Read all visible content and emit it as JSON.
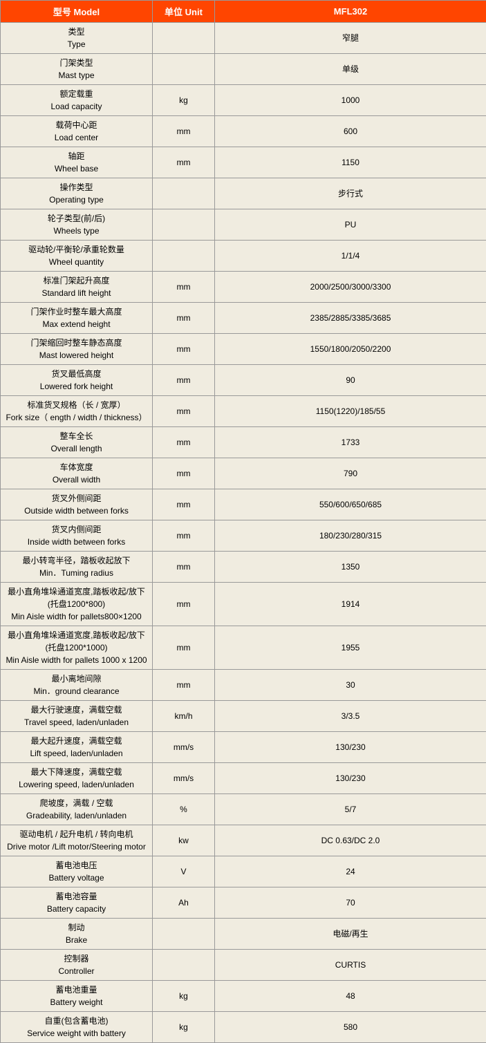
{
  "header": {
    "model_label": "型号 Model",
    "unit_label": "单位 Unit",
    "product": "MFL302"
  },
  "rows": [
    {
      "label": "类型\nType",
      "unit": "",
      "value": "窄腿"
    },
    {
      "label": "门架类型\nMast type",
      "unit": "",
      "value": "单级"
    },
    {
      "label": "额定载重\nLoad capacity",
      "unit": "kg",
      "value": "1000"
    },
    {
      "label": "载荷中心距\nLoad center",
      "unit": "mm",
      "value": "600"
    },
    {
      "label": "轴距\nWheel base",
      "unit": "mm",
      "value": "1150"
    },
    {
      "label": "操作类型\nOperating type",
      "unit": "",
      "value": "步行式"
    },
    {
      "label": "轮子类型(前/后)\nWheels type",
      "unit": "",
      "value": "PU"
    },
    {
      "label": "驱动轮/平衡轮/承重轮数量\nWheel quantity",
      "unit": "",
      "value": "1/1/4"
    },
    {
      "label": "标准门架起升高度\nStandard lift height",
      "unit": "mm",
      "value": "2000/2500/3000/3300"
    },
    {
      "label": "门架作业时整车最大高度\nMax extend height",
      "unit": "mm",
      "value": "2385/2885/3385/3685"
    },
    {
      "label": "门架缩回时整车静态高度\nMast lowered height",
      "unit": "mm",
      "value": "1550/1800/2050/2200"
    },
    {
      "label": "货叉最低高度\nLowered fork height",
      "unit": "mm",
      "value": "90"
    },
    {
      "label": "标准货叉规格（长 / 宽厚）\nFork size（ ength / width / thickness）",
      "unit": "mm",
      "value": "1150(1220)/185/55"
    },
    {
      "label": "整车全长\nOverall length",
      "unit": "mm",
      "value": "1733"
    },
    {
      "label": "车体宽度\nOverall width",
      "unit": "mm",
      "value": "790"
    },
    {
      "label": "货叉外侧间距\nOutside width between forks",
      "unit": "mm",
      "value": "550/600/650/685"
    },
    {
      "label": "货叉内侧间距\nInside width between forks",
      "unit": "mm",
      "value": "180/230/280/315"
    },
    {
      "label": "最小转弯半径，踏板收起放下\nMin．Tuming radius",
      "unit": "mm",
      "value": "1350"
    },
    {
      "label": "最小直角堆垛通道宽度,踏板收起/放下\n(托盘1200*800)\nMin Aisle width for pallets800×1200",
      "unit": "mm",
      "value": "1914"
    },
    {
      "label": "最小直角堆垛通道宽度,踏板收起/放下\n(托盘1200*1000)\nMin Aisle width for pallets 1000 x 1200",
      "unit": "mm",
      "value": "1955"
    },
    {
      "label": "最小离地间隙\nMin．ground clearance",
      "unit": "mm",
      "value": "30"
    },
    {
      "label": "最大行驶速度，满载空载\nTravel speed, laden/unladen",
      "unit": "km/h",
      "value": "3/3.5"
    },
    {
      "label": "最大起升速度，满载空载\nLift speed, laden/unladen",
      "unit": "mm/s",
      "value": "130/230"
    },
    {
      "label": "最大下降速度，满载空载\nLowering speed, laden/unladen",
      "unit": "mm/s",
      "value": "130/230"
    },
    {
      "label": "爬坡度，满载 / 空载\nGradeability, laden/unladen",
      "unit": "%",
      "value": "5/7"
    },
    {
      "label": "驱动电机 / 起升电机 / 转向电机\nDrive motor /Lift motor/Steering motor",
      "unit": "kw",
      "value": "DC 0.63/DC 2.0"
    },
    {
      "label": "蓄电池电压\nBattery voltage",
      "unit": "V",
      "value": "24"
    },
    {
      "label": "蓄电池容量\nBattery capacity",
      "unit": "Ah",
      "value": "70"
    },
    {
      "label": "制动\nBrake",
      "unit": "",
      "value": "电磁/再生"
    },
    {
      "label": "控制器\nController",
      "unit": "",
      "value": "CURTIS"
    },
    {
      "label": "蓄电池重量\nBattery weight",
      "unit": "kg",
      "value": "48"
    },
    {
      "label": "自重(包含蓄电池)\nService weight with battery",
      "unit": "kg",
      "value": "580"
    }
  ],
  "styles": {
    "header_bg": "#ff4500",
    "header_fg": "#ffffff",
    "cell_bg": "#f0ece0",
    "border_color": "#999999",
    "font_size": 12
  }
}
